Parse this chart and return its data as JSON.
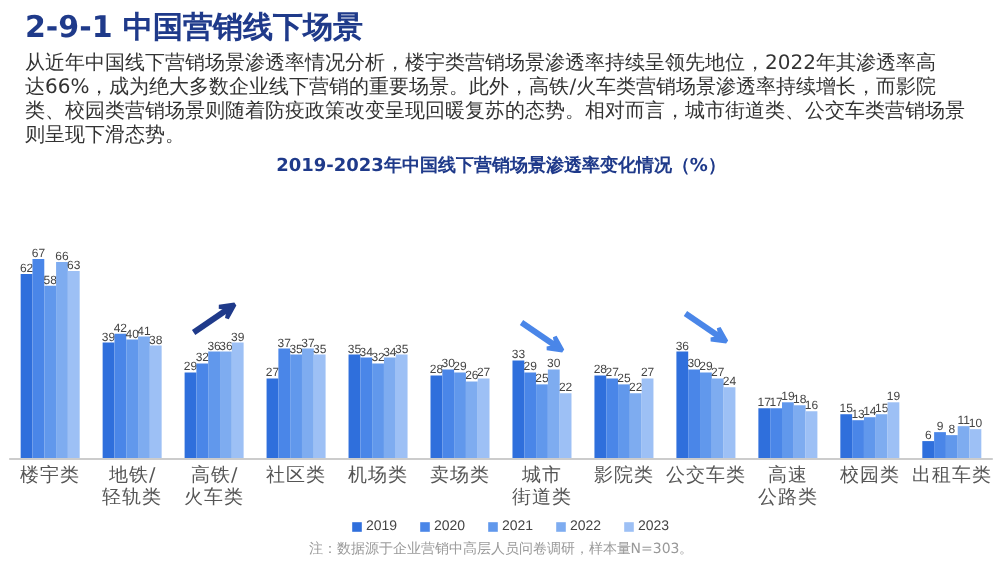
{
  "chart_data": {
    "type": "bar",
    "title": "2019-2023年中国线下营销场景渗透率变化情况（%）",
    "subtitle": "从近年中国线下营销场景渗透率情况分析，楼宇类营销场景渗透率持续呈领先地位，2022年其渗透率高达66%，成为绝大多数企业线下营销的重要场景。此外，高铁/火车类营销场景渗透率持续增长，而影院类、校园类营销场景则随着防疫政策改变呈现回暖复苏的态势。相对而言，城市街道类、公交车类营销场景则呈现下滑态势。",
    "annotations": [
      "2-9-1 中国营销线下场景",
      "注：数据源于企业营销中高层人员问卷调研，样本量N=303。"
    ],
    "categories": [
      "楼宇类",
      "地铁/轻轨类",
      "高铁/火车类",
      "社区类",
      "机场类",
      "卖场类",
      "城市街道类",
      "影院类",
      "公交车类",
      "高速公路类",
      "校园类",
      "出租车类"
    ],
    "series": [
      {
        "name": "2019",
        "color": "#2f6fdc",
        "values": [
          62,
          39,
          29,
          27,
          35,
          28,
          33,
          28,
          36,
          17,
          15,
          6
        ]
      },
      {
        "name": "2020",
        "color": "#4a86e8",
        "values": [
          67,
          42,
          32,
          37,
          34,
          30,
          29,
          27,
          30,
          17,
          13,
          9
        ]
      },
      {
        "name": "2021",
        "color": "#6198ec",
        "values": [
          58,
          40,
          36,
          35,
          32,
          29,
          25,
          25,
          29,
          19,
          14,
          8
        ]
      },
      {
        "name": "2022",
        "color": "#7eacf0",
        "values": [
          66,
          41,
          36,
          37,
          34,
          26,
          30,
          22,
          27,
          18,
          15,
          11
        ]
      },
      {
        "name": "2023",
        "color": "#9dc0f5",
        "values": [
          63,
          38,
          39,
          35,
          35,
          27,
          22,
          27,
          24,
          16,
          19,
          10
        ]
      }
    ],
    "data_labels": true,
    "legend": "bottom",
    "tick_labels": "x"
  }
}
